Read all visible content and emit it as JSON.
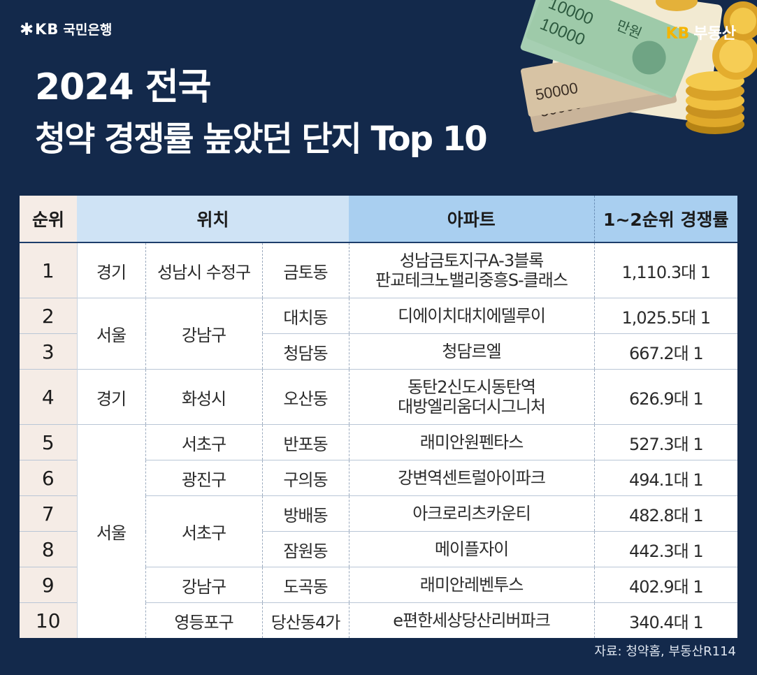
{
  "header": {
    "bank_star": "✱",
    "bank_kb": "KB",
    "bank_name": "국민은행",
    "brand_kb": "KB",
    "brand_name": "부동산",
    "title_line1": "2024 전국",
    "title_line2": "청약 경쟁률 높았던 단지 Top 10"
  },
  "money_labels": {
    "note_top": "10000",
    "note_man": "만원",
    "note_mid": "10000",
    "note_low": "50000",
    "note_bottom": "50000"
  },
  "table": {
    "headers": {
      "rank": "순위",
      "location": "위치",
      "apartment": "아파트",
      "ratio": "1~2순위 경쟁률"
    },
    "rows": [
      {
        "rank": "1",
        "region": "경기",
        "district": "성남시 수정구",
        "dong": "금토동",
        "apt_line1": "성남금토지구A-3블록",
        "apt_line2": "판교테크노밸리중흥S-클래스",
        "ratio": "1,110.3대 1"
      },
      {
        "rank": "2",
        "region": "서울",
        "district": "강남구",
        "dong": "대치동",
        "apt_line1": "디에이치대치에델루이",
        "apt_line2": "",
        "ratio": "1,025.5대 1"
      },
      {
        "rank": "3",
        "region": "",
        "district": "",
        "dong": "청담동",
        "apt_line1": "청담르엘",
        "apt_line2": "",
        "ratio": "667.2대 1"
      },
      {
        "rank": "4",
        "region": "경기",
        "district": "화성시",
        "dong": "오산동",
        "apt_line1": "동탄2신도시동탄역",
        "apt_line2": "대방엘리움더시그니처",
        "ratio": "626.9대 1"
      },
      {
        "rank": "5",
        "region": "서울",
        "district": "서초구",
        "dong": "반포동",
        "apt_line1": "래미안원펜타스",
        "apt_line2": "",
        "ratio": "527.3대 1"
      },
      {
        "rank": "6",
        "region": "",
        "district": "광진구",
        "dong": "구의동",
        "apt_line1": "강변역센트럴아이파크",
        "apt_line2": "",
        "ratio": "494.1대 1"
      },
      {
        "rank": "7",
        "region": "",
        "district": "서초구",
        "dong": "방배동",
        "apt_line1": "아크로리츠카운티",
        "apt_line2": "",
        "ratio": "482.8대 1"
      },
      {
        "rank": "8",
        "region": "",
        "district": "",
        "dong": "잠원동",
        "apt_line1": "메이플자이",
        "apt_line2": "",
        "ratio": "442.3대 1"
      },
      {
        "rank": "9",
        "region": "",
        "district": "강남구",
        "dong": "도곡동",
        "apt_line1": "래미안레벤투스",
        "apt_line2": "",
        "ratio": "402.9대 1"
      },
      {
        "rank": "10",
        "region": "",
        "district": "영등포구",
        "dong": "당산동4가",
        "apt_line1": "e편한세상당산리버파크",
        "apt_line2": "",
        "ratio": "340.4대 1"
      }
    ]
  },
  "source": "자료: 청약홈, 부동산R114",
  "colors": {
    "background": "#13294b",
    "rank_column": "#f5ece6",
    "location_header": "#cfe3f5",
    "apartment_header": "#a9cff0",
    "brand_accent": "#f4b400"
  }
}
